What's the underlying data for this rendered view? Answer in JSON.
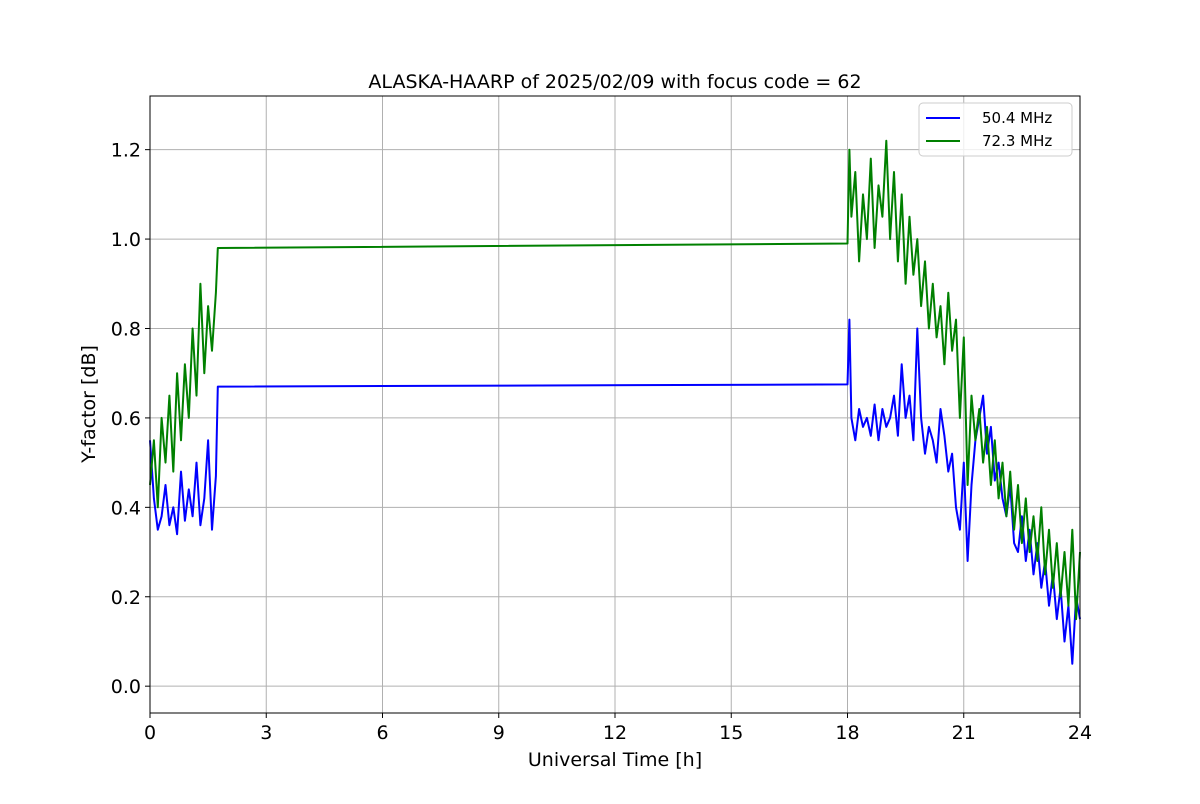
{
  "chart_data": {
    "type": "line",
    "title": "ALASKA-HAARP of 2025/02/09 with focus code = 62",
    "xlabel": "Universal Time [h]",
    "ylabel": "Y-factor [dB]",
    "xlim": [
      0,
      24
    ],
    "ylim": [
      -0.06,
      1.32
    ],
    "xticks": [
      0,
      3,
      6,
      9,
      12,
      15,
      18,
      21,
      24
    ],
    "xtick_labels": [
      "0",
      "3",
      "6",
      "9",
      "12",
      "15",
      "18",
      "21",
      "24"
    ],
    "yticks": [
      0.0,
      0.2,
      0.4,
      0.6,
      0.8,
      1.0,
      1.2
    ],
    "ytick_labels": [
      "0.0",
      "0.2",
      "0.4",
      "0.6",
      "0.8",
      "1.0",
      "1.2"
    ],
    "grid": true,
    "legend": {
      "position": "top-right",
      "entries": [
        "50.4 MHz",
        "72.3 MHz"
      ]
    },
    "series": [
      {
        "name": "50.4 MHz",
        "color": "#0000ff",
        "x": [
          0.0,
          0.1,
          0.2,
          0.3,
          0.4,
          0.5,
          0.6,
          0.7,
          0.8,
          0.9,
          1.0,
          1.1,
          1.2,
          1.3,
          1.4,
          1.5,
          1.6,
          1.7,
          1.75,
          18.0,
          18.05,
          18.1,
          18.2,
          18.3,
          18.4,
          18.5,
          18.6,
          18.7,
          18.8,
          18.9,
          19.0,
          19.1,
          19.2,
          19.3,
          19.4,
          19.5,
          19.6,
          19.7,
          19.8,
          19.9,
          20.0,
          20.1,
          20.2,
          20.3,
          20.4,
          20.5,
          20.6,
          20.7,
          20.8,
          20.9,
          21.0,
          21.1,
          21.2,
          21.3,
          21.4,
          21.5,
          21.6,
          21.7,
          21.8,
          21.9,
          22.0,
          22.1,
          22.2,
          22.3,
          22.4,
          22.5,
          22.6,
          22.7,
          22.8,
          22.9,
          23.0,
          23.1,
          23.2,
          23.3,
          23.4,
          23.5,
          23.6,
          23.7,
          23.8,
          23.9,
          24.0
        ],
        "values": [
          0.55,
          0.42,
          0.35,
          0.38,
          0.45,
          0.36,
          0.4,
          0.34,
          0.48,
          0.37,
          0.44,
          0.38,
          0.5,
          0.36,
          0.42,
          0.55,
          0.35,
          0.47,
          0.67,
          0.675,
          0.82,
          0.6,
          0.55,
          0.62,
          0.58,
          0.6,
          0.56,
          0.63,
          0.55,
          0.62,
          0.58,
          0.6,
          0.65,
          0.56,
          0.72,
          0.6,
          0.65,
          0.55,
          0.8,
          0.6,
          0.52,
          0.58,
          0.55,
          0.5,
          0.62,
          0.56,
          0.48,
          0.52,
          0.4,
          0.35,
          0.5,
          0.28,
          0.45,
          0.55,
          0.6,
          0.65,
          0.52,
          0.58,
          0.46,
          0.5,
          0.42,
          0.38,
          0.45,
          0.32,
          0.3,
          0.38,
          0.28,
          0.35,
          0.25,
          0.32,
          0.22,
          0.28,
          0.18,
          0.25,
          0.15,
          0.22,
          0.1,
          0.18,
          0.05,
          0.2,
          0.15
        ]
      },
      {
        "name": "72.3 MHz",
        "color": "#008000",
        "x": [
          0.0,
          0.1,
          0.2,
          0.3,
          0.4,
          0.5,
          0.6,
          0.7,
          0.8,
          0.9,
          1.0,
          1.1,
          1.2,
          1.3,
          1.4,
          1.5,
          1.6,
          1.7,
          1.75,
          18.0,
          18.05,
          18.1,
          18.2,
          18.3,
          18.4,
          18.5,
          18.6,
          18.7,
          18.8,
          18.9,
          19.0,
          19.1,
          19.2,
          19.3,
          19.4,
          19.5,
          19.6,
          19.7,
          19.8,
          19.9,
          20.0,
          20.1,
          20.2,
          20.3,
          20.4,
          20.5,
          20.6,
          20.7,
          20.8,
          20.9,
          21.0,
          21.1,
          21.2,
          21.3,
          21.4,
          21.5,
          21.6,
          21.7,
          21.8,
          21.9,
          22.0,
          22.1,
          22.2,
          22.3,
          22.4,
          22.5,
          22.6,
          22.7,
          22.8,
          22.9,
          23.0,
          23.1,
          23.2,
          23.3,
          23.4,
          23.5,
          23.6,
          23.7,
          23.8,
          23.9,
          24.0
        ],
        "values": [
          0.45,
          0.55,
          0.4,
          0.6,
          0.5,
          0.65,
          0.48,
          0.7,
          0.55,
          0.72,
          0.6,
          0.8,
          0.65,
          0.9,
          0.7,
          0.85,
          0.75,
          0.88,
          0.98,
          0.99,
          1.2,
          1.05,
          1.15,
          0.95,
          1.1,
          1.0,
          1.18,
          0.98,
          1.12,
          1.05,
          1.22,
          1.0,
          1.15,
          0.95,
          1.1,
          0.9,
          1.05,
          0.92,
          1.0,
          0.85,
          0.95,
          0.8,
          0.9,
          0.78,
          0.85,
          0.72,
          0.88,
          0.75,
          0.82,
          0.6,
          0.78,
          0.45,
          0.65,
          0.55,
          0.62,
          0.5,
          0.58,
          0.45,
          0.55,
          0.42,
          0.5,
          0.38,
          0.48,
          0.35,
          0.45,
          0.32,
          0.42,
          0.3,
          0.38,
          0.28,
          0.4,
          0.25,
          0.35,
          0.22,
          0.32,
          0.2,
          0.3,
          0.18,
          0.35,
          0.15,
          0.3
        ]
      }
    ]
  }
}
